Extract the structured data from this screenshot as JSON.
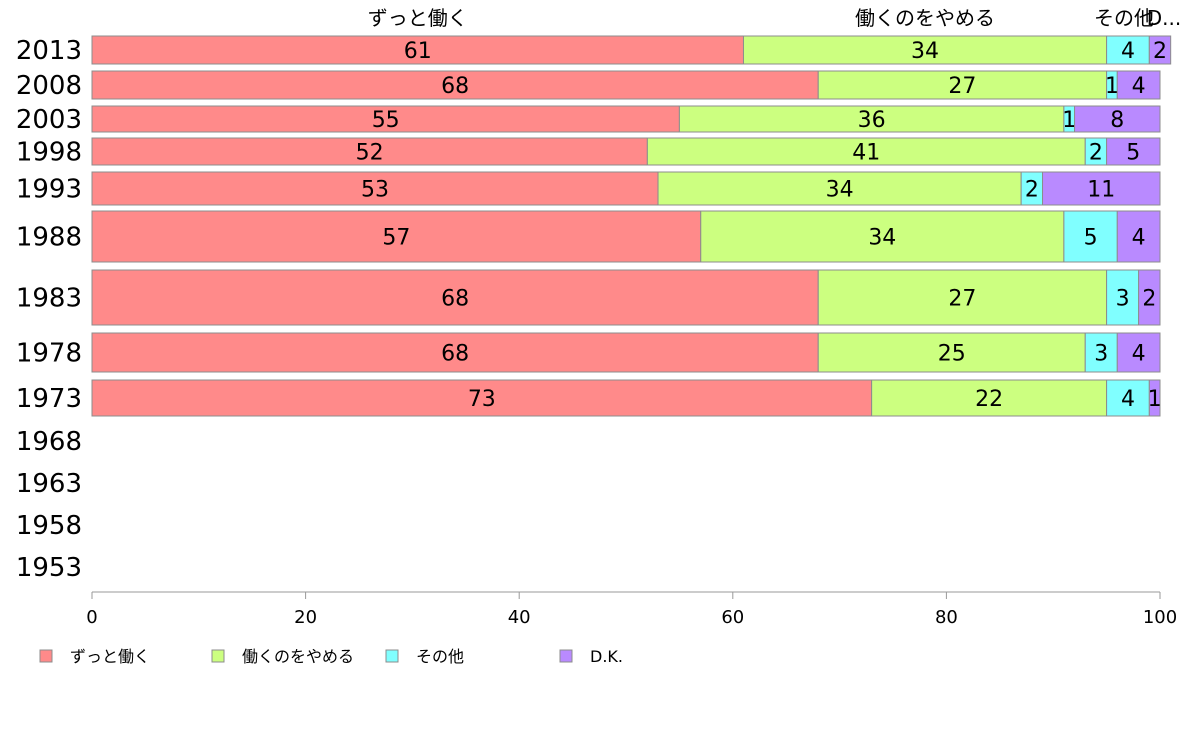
{
  "chart_data": {
    "type": "bar",
    "orientation": "horizontal",
    "stacked": true,
    "categories": [
      "2013",
      "2008",
      "2003",
      "1998",
      "1993",
      "1988",
      "1983",
      "1978",
      "1973",
      "1968",
      "1963",
      "1958",
      "1953"
    ],
    "series": [
      {
        "name": "ずっと働く",
        "color": "#ff8a8a",
        "values": [
          61,
          68,
          55,
          52,
          53,
          57,
          68,
          68,
          73,
          null,
          null,
          null,
          null
        ]
      },
      {
        "name": "働くのをやめる",
        "color": "#ccff80",
        "values": [
          34,
          27,
          36,
          41,
          34,
          34,
          27,
          25,
          22,
          null,
          null,
          null,
          null
        ]
      },
      {
        "name": "その他",
        "color": "#80ffff",
        "values": [
          4,
          1,
          1,
          2,
          2,
          5,
          3,
          3,
          4,
          null,
          null,
          null,
          null
        ]
      },
      {
        "name": "D.K.",
        "color": "#b98aff",
        "values": [
          2,
          4,
          8,
          5,
          11,
          4,
          2,
          4,
          1,
          null,
          null,
          null,
          null
        ]
      }
    ],
    "column_headers": [
      "ずっと働く",
      "働くのをやめる",
      "その他",
      "D..."
    ],
    "xlim": [
      0,
      100
    ],
    "x_ticks": [
      "0",
      "20",
      "40",
      "60",
      "80",
      "100"
    ],
    "legend_position": "bottom-left",
    "grid": false
  }
}
